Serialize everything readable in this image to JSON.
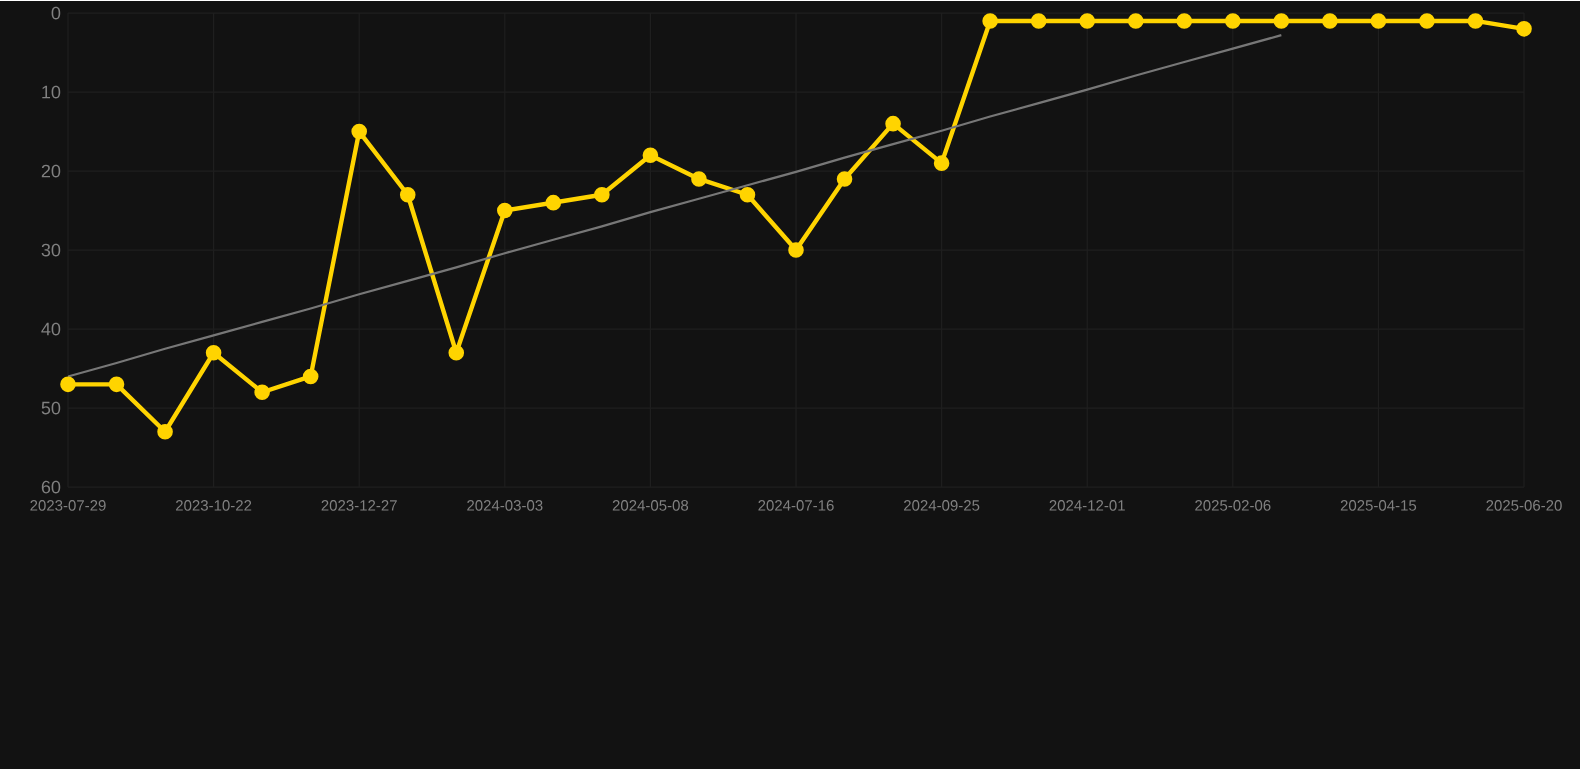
{
  "chart_data": {
    "type": "line",
    "categories": [
      "2023-07-29",
      null,
      null,
      "2023-10-22",
      null,
      null,
      "2023-12-27",
      null,
      null,
      "2024-03-03",
      null,
      null,
      "2024-05-08",
      null,
      null,
      "2024-07-16",
      null,
      null,
      "2024-09-25",
      null,
      null,
      "2024-12-01",
      null,
      null,
      "2025-02-06",
      null,
      null,
      "2025-04-15",
      null,
      null,
      "2025-06-20"
    ],
    "series": [
      {
        "color": "#ffd400",
        "values": [
          47,
          47,
          53,
          43,
          48,
          46,
          15,
          23,
          43,
          25,
          24,
          23,
          18,
          21,
          23,
          30,
          21,
          14,
          19,
          1,
          1,
          1,
          1,
          1,
          1,
          1,
          1,
          1,
          1,
          1,
          2
        ]
      },
      {
        "type": "line",
        "color": "#777777",
        "marker": "none",
        "values": [
          46,
          44.3,
          42.5,
          40.8,
          39.1,
          37.4,
          35.6,
          33.9,
          32.2,
          30.4,
          28.7,
          27,
          25.2,
          23.5,
          21.8,
          20.1,
          18.3,
          16.6,
          14.9,
          13.1,
          11.4,
          9.7,
          7.9,
          6.2,
          4.5,
          2.8,
          null,
          null,
          null,
          null,
          null
        ]
      }
    ],
    "ylim": [
      60,
      0
    ],
    "yticks": [
      0,
      10,
      20,
      30,
      40,
      50,
      60
    ],
    "grid": true,
    "marker": "circle",
    "line_style": "solid"
  }
}
